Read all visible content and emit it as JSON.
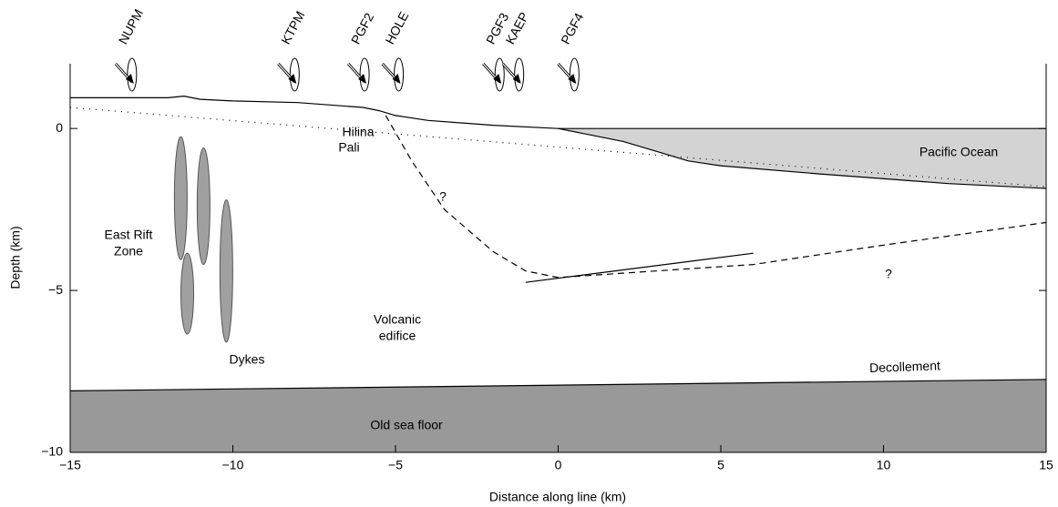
{
  "chart_data": {
    "type": "cross-section",
    "xlabel": "Distance along line (km)",
    "ylabel": "Depth (km)",
    "xlim": [
      -15,
      15
    ],
    "ylim": [
      -10,
      2
    ],
    "xticks": [
      {
        "value": -15,
        "label": "−15"
      },
      {
        "value": -10,
        "label": "−10"
      },
      {
        "value": -5,
        "label": "−5"
      },
      0,
      5,
      10,
      15
    ],
    "yticks": [
      0,
      {
        "value": -5,
        "label": "−5"
      },
      {
        "value": -10,
        "label": "−10"
      }
    ],
    "stations": [
      {
        "name": "NUPM",
        "x": -13.1
      },
      {
        "name": "KTPM",
        "x": -8.1
      },
      {
        "name": "PGF2",
        "x": -5.95
      },
      {
        "name": "HOLE",
        "x": -4.9
      },
      {
        "name": "PGF3",
        "x": -1.8
      },
      {
        "name": "KAEP",
        "x": -1.2
      },
      {
        "name": "PGF4",
        "x": 0.5
      }
    ],
    "surface": {
      "x": [
        -15,
        -12,
        -11.5,
        -11,
        -10,
        -8,
        -6,
        -5.5,
        -5,
        -4,
        -2,
        0
      ],
      "depth": [
        0.95,
        0.95,
        1.0,
        0.9,
        0.85,
        0.8,
        0.65,
        0.55,
        0.4,
        0.25,
        0.1,
        0
      ]
    },
    "seafloor": {
      "x": [
        0,
        1,
        2,
        3,
        4,
        5,
        8,
        12,
        15
      ],
      "depth": [
        0,
        -0.2,
        -0.4,
        -0.7,
        -1.0,
        -1.15,
        -1.4,
        -1.7,
        -1.85
      ]
    },
    "dotted": {
      "x": [
        -15,
        15
      ],
      "depth": [
        0.65,
        -1.8
      ]
    },
    "fault": {
      "x": [
        -5.3,
        -4.5,
        -3.5,
        -2,
        -1,
        0,
        3,
        6,
        10,
        15
      ],
      "depth": [
        0.4,
        -1,
        -2.5,
        -3.8,
        -4.4,
        -4.6,
        -4.4,
        -4.2,
        -3.6,
        -2.9
      ]
    },
    "slip": {
      "x": [
        -1,
        6
      ],
      "depth": [
        -4.75,
        -3.85
      ]
    },
    "decollement": {
      "x": [
        -15,
        15
      ],
      "depth": [
        -8.1,
        -7.75
      ]
    },
    "dykes": [
      {
        "x": -11.6,
        "depth": -2.15,
        "half_height": 1.9
      },
      {
        "x": -10.9,
        "depth": -2.4,
        "half_height": 1.8
      },
      {
        "x": -10.2,
        "depth": -4.4,
        "half_height": 2.2
      },
      {
        "x": -11.4,
        "depth": -5.1,
        "half_height": 1.25
      }
    ],
    "annotations": [
      "Hilina",
      "Pali",
      "East Rift",
      "Zone",
      "Volcanic",
      "edifice",
      "Dykes",
      "?",
      "?",
      "Pacific Ocean",
      "Decollement",
      "Old sea floor"
    ]
  }
}
